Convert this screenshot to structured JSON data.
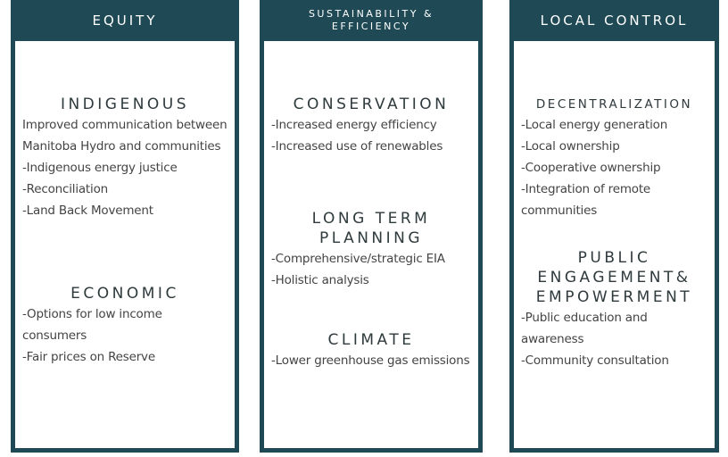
{
  "columns": [
    {
      "title": "EQUITY",
      "sections": [
        {
          "heading": "INDIGENOUS",
          "items": [
            "Improved communication between Manitoba Hydro and communities",
            "-Indigenous energy justice",
            "-Reconciliation",
            "-Land Back Movement"
          ]
        },
        {
          "heading": "ECONOMIC",
          "items": [
            "-Options for low income consumers",
            "-Fair prices on Reserve"
          ]
        }
      ]
    },
    {
      "title": "SUSTAINABILITY & EFFICIENCY",
      "sections": [
        {
          "heading": "CONSERVATION",
          "items": [
            "-Increased energy efficiency",
            "-Increased use of renewables"
          ]
        },
        {
          "heading": "LONG TERM PLANNING",
          "items": [
            "-Comprehensive/strategic EIA",
            "-Holistic analysis"
          ]
        },
        {
          "heading": "CLIMATE",
          "items": [
            "-Lower greenhouse gas emissions"
          ]
        }
      ]
    },
    {
      "title": "LOCAL CONTROL",
      "sections": [
        {
          "heading": "DECENTRALIZATION",
          "items": [
            "-Local energy generation",
            "-Local ownership",
            "-Cooperative ownership",
            "-Integration of remote communities"
          ]
        },
        {
          "heading": "PUBLIC ENGAGEMENT& EMPOWERMENT",
          "items": [
            "-Public education and awareness",
            "-Community consultation"
          ]
        }
      ]
    }
  ]
}
